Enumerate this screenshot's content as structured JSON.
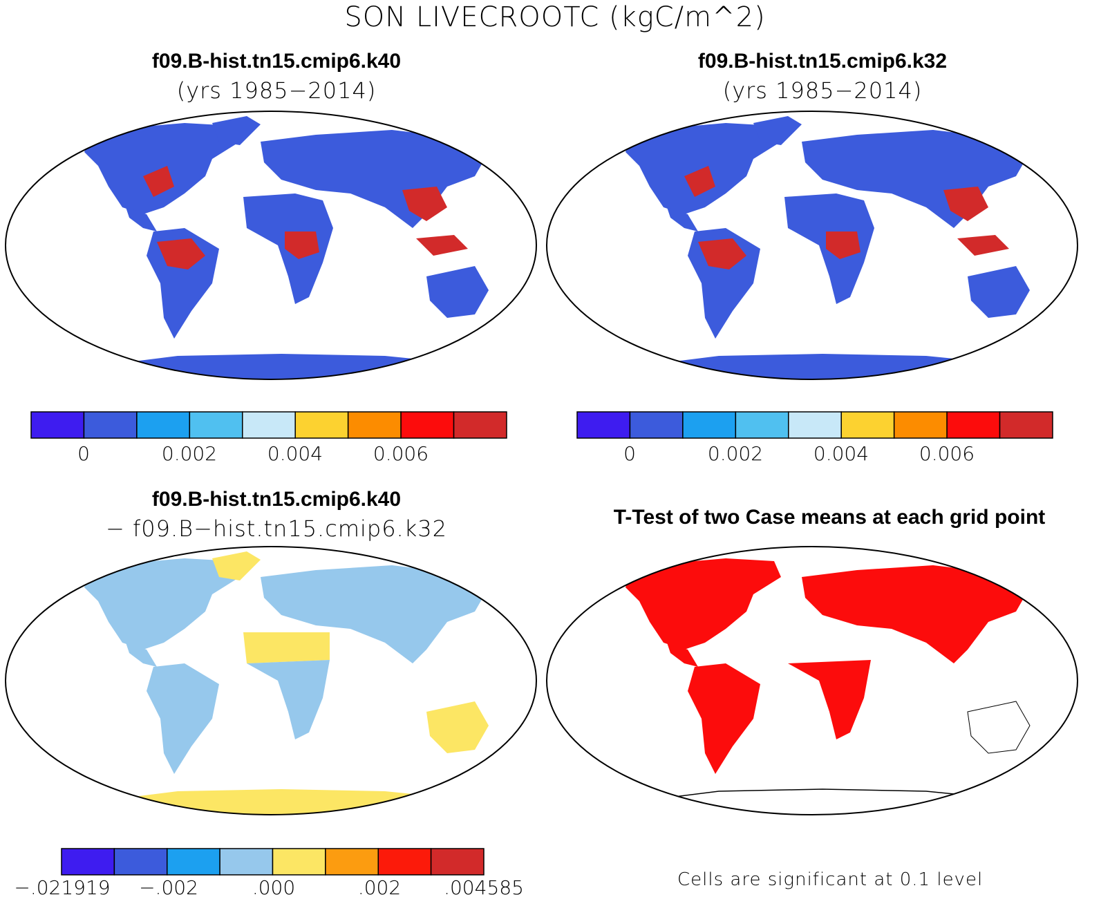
{
  "title": "SON LIVECROOTC (kgC/m^2)",
  "panels": {
    "top_left": {
      "title": "f09.B-hist.tn15.cmip6.k40",
      "subtitle": "(yrs 1985−2014)",
      "colorbar": {
        "colors": [
          "#3e1cf0",
          "#3c5bdc",
          "#1ca0f0",
          "#50c0f0",
          "#c8e8f8",
          "#fcd230",
          "#fc8c00",
          "#fc0c0c",
          "#d22a2a"
        ],
        "labels": [
          "0",
          "0.002",
          "0.004",
          "0.006"
        ]
      }
    },
    "top_right": {
      "title": "f09.B-hist.tn15.cmip6.k32",
      "subtitle": "(yrs 1985−2014)",
      "colorbar": {
        "colors": [
          "#3e1cf0",
          "#3c5bdc",
          "#1ca0f0",
          "#50c0f0",
          "#c8e8f8",
          "#fcd230",
          "#fc8c00",
          "#fc0c0c",
          "#d22a2a"
        ],
        "labels": [
          "0",
          "0.002",
          "0.004",
          "0.006"
        ]
      }
    },
    "bottom_left": {
      "title": "f09.B-hist.tn15.cmip6.k40",
      "subtitle": "− f09.B−hist.tn15.cmip6.k32",
      "colorbar": {
        "colors": [
          "#3e1cf0",
          "#3c5bdc",
          "#1ca0f0",
          "#96c8ec",
          "#fce664",
          "#fc9c10",
          "#fc1a0a",
          "#d22a2a"
        ],
        "labels": [
          "−.021919",
          "−.002",
          ".000",
          ".002",
          ".004585"
        ]
      }
    },
    "bottom_right": {
      "title": "T-Test of two Case means at each grid point",
      "note": "Cells are significant at 0.1 level"
    }
  },
  "map_colors": {
    "ocean": "#ffffff",
    "land_base_top": "#3c5bdc",
    "land_hot": "#d22a2a",
    "land_light": "#c8e8f8",
    "land_yellow": "#fcd230",
    "diff_blue": "#96c8ec",
    "diff_yellow": "#fce664",
    "ttest_red": "#fc0c0c"
  }
}
